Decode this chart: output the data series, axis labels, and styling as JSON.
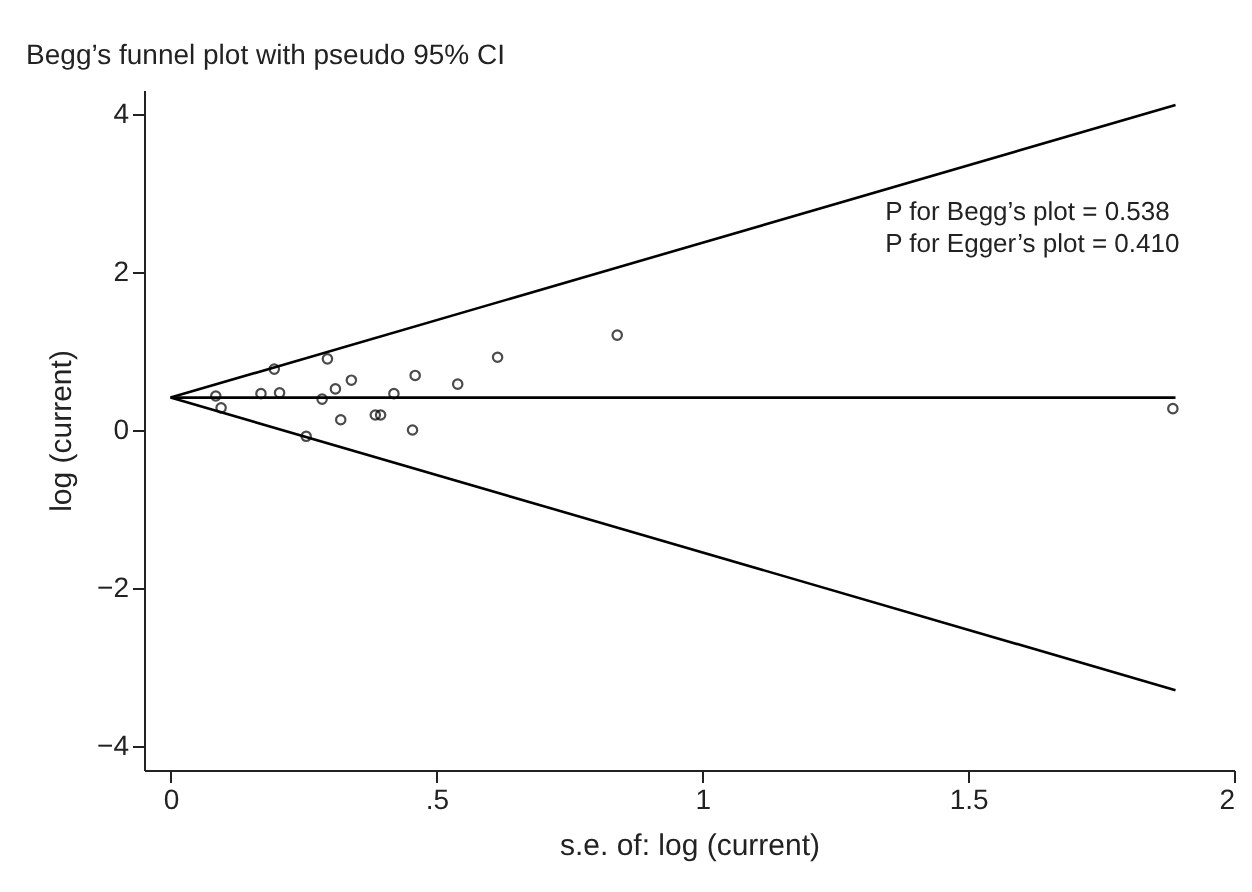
{
  "chart_data": {
    "type": "scatter",
    "title": "Begg’s funnel plot with pseudo 95% CI",
    "xlabel": "s.e. of: log (current)",
    "ylabel": "log (current)",
    "xlim": [
      -0.05,
      2
    ],
    "ylim": [
      -4.3,
      4.3
    ],
    "xticks": [
      0,
      {
        "value": 0.5,
        "label": ".5"
      },
      1,
      1.5,
      2
    ],
    "yticks": [
      -4,
      -2,
      0,
      2,
      4
    ],
    "grid": false,
    "annotations": [
      "P for Begg’s plot = 0.538",
      "P for Egger’s plot = 0.410"
    ],
    "series": [
      {
        "type": "line",
        "color": "#000000",
        "x": [
          0,
          1.89
        ],
        "values": [
          0.41,
          4.11
        ]
      },
      {
        "type": "line",
        "color": "#000000",
        "x": [
          0,
          1.89
        ],
        "values": [
          0.41,
          0.41
        ]
      },
      {
        "type": "line",
        "color": "#000000",
        "x": [
          0,
          1.89
        ],
        "values": [
          0.41,
          -3.29
        ]
      },
      {
        "marker": "circle",
        "color": "#000000",
        "x": [
          0.085,
          0.095,
          0.17,
          0.195,
          0.205,
          0.255,
          0.285,
          0.295,
          0.31,
          0.32,
          0.34,
          0.385,
          0.395,
          0.42,
          0.455,
          0.46,
          0.54,
          0.615,
          0.84,
          1.885
        ],
        "values": [
          0.43,
          0.28,
          0.46,
          0.77,
          0.47,
          -0.08,
          0.39,
          0.9,
          0.52,
          0.13,
          0.63,
          0.19,
          0.19,
          0.46,
          0,
          0.69,
          0.58,
          0.92,
          1.2,
          0.27
        ]
      }
    ]
  }
}
